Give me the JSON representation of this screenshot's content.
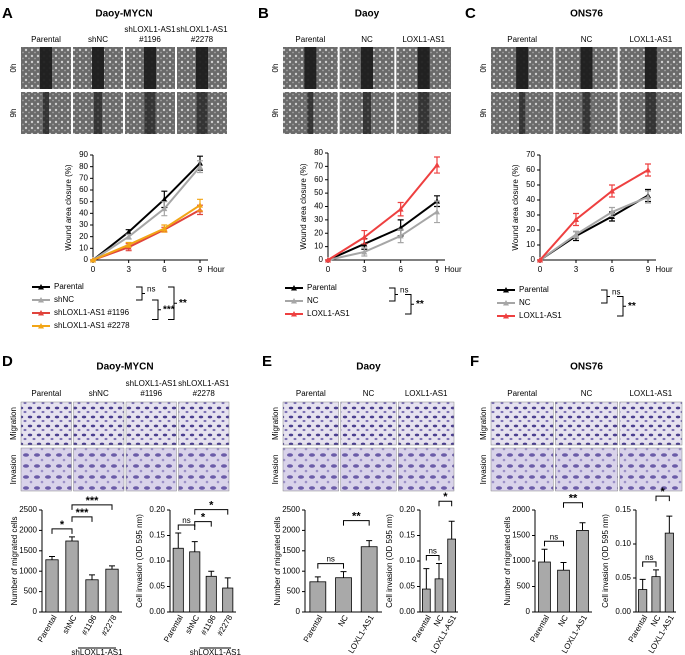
{
  "figure": {
    "panels": [
      {
        "letter": "A",
        "title": "Daoy-MYCN",
        "columns": [
          [
            "Parental"
          ],
          [
            "shNC"
          ],
          [
            "shLOXL1-AS1",
            "#1196"
          ],
          [
            "shLOXL1-AS1",
            "#2278"
          ]
        ],
        "rows": [
          "0h",
          "9h"
        ]
      },
      {
        "letter": "B",
        "title": "Daoy",
        "columns": [
          [
            "Parental"
          ],
          [
            "NC"
          ],
          [
            "LOXL1-AS1"
          ]
        ],
        "rows": [
          "0h",
          "9h"
        ]
      },
      {
        "letter": "C",
        "title": "ONS76",
        "columns": [
          [
            "Parental"
          ],
          [
            "NC"
          ],
          [
            "LOXL1-AS1"
          ]
        ],
        "rows": [
          "0h",
          "9h"
        ]
      },
      {
        "letter": "D",
        "title": "Daoy-MYCN",
        "columns": [
          [
            "Parental"
          ],
          [
            "shNC"
          ],
          [
            "shLOXL1-AS1",
            "#1196"
          ],
          [
            "shLOXL1-AS1",
            "#2278"
          ]
        ],
        "rows": [
          "Migration",
          "Invasion"
        ]
      },
      {
        "letter": "E",
        "title": "Daoy",
        "columns": [
          [
            "Parental"
          ],
          [
            "NC"
          ],
          [
            "LOXL1-AS1"
          ]
        ],
        "rows": [
          "Migration",
          "Invasion"
        ]
      },
      {
        "letter": "F",
        "title": "ONS76",
        "columns": [
          [
            "Parental"
          ],
          [
            "NC"
          ],
          [
            "LOXL1-AS1"
          ]
        ],
        "rows": [
          "Migration",
          "Invasion"
        ]
      }
    ]
  },
  "chart_data": [
    {
      "type": "line",
      "ylabel": "Wound area closure (%)",
      "xlabel": "Hour",
      "x": [
        0,
        3,
        6,
        9
      ],
      "xlim": [
        0,
        9
      ],
      "xticks": [
        0,
        3,
        6,
        9
      ],
      "ylim": [
        0,
        90
      ],
      "yticks": [
        0,
        10,
        20,
        30,
        40,
        50,
        60,
        70,
        80,
        90
      ],
      "series": [
        {
          "name": "Parental",
          "color": "#000000",
          "values": [
            0,
            24,
            52,
            83
          ],
          "errors": [
            0,
            2,
            7,
            6
          ]
        },
        {
          "name": "shNC",
          "color": "#a6a6a6",
          "values": [
            0,
            20,
            44,
            80
          ],
          "errors": [
            0,
            2,
            6,
            5
          ]
        },
        {
          "name": "shLOXL1-AS1 #1196",
          "color": "#e0443c",
          "values": [
            0,
            11,
            26,
            43
          ],
          "errors": [
            0,
            3,
            2,
            4
          ]
        },
        {
          "name": "shLOXL1-AS1 #2278",
          "color": "#f2a516",
          "values": [
            0,
            13,
            27,
            47
          ],
          "errors": [
            0,
            2,
            3,
            5
          ]
        }
      ],
      "annotations": [
        "ns",
        "***",
        "**"
      ]
    },
    {
      "type": "line",
      "ylabel": "Wound area closure (%)",
      "xlabel": "Hour",
      "x": [
        0,
        3,
        6,
        9
      ],
      "xlim": [
        0,
        9
      ],
      "xticks": [
        0,
        3,
        6,
        9
      ],
      "ylim": [
        0,
        80
      ],
      "yticks": [
        0,
        10,
        20,
        30,
        40,
        50,
        60,
        70,
        80
      ],
      "series": [
        {
          "name": "Parental",
          "color": "#000000",
          "values": [
            0,
            12,
            24,
            44
          ],
          "errors": [
            0,
            4,
            6,
            4
          ]
        },
        {
          "name": "NC",
          "color": "#a6a6a6",
          "values": [
            0,
            6,
            18,
            36
          ],
          "errors": [
            0,
            3,
            5,
            8
          ]
        },
        {
          "name": "LOXL1-AS1",
          "color": "#ee4040",
          "values": [
            0,
            17,
            38,
            71
          ],
          "errors": [
            0,
            5,
            5,
            6
          ]
        }
      ],
      "annotations": [
        "ns",
        "**"
      ]
    },
    {
      "type": "line",
      "ylabel": "Wound area closure (%)",
      "xlabel": "Hour",
      "x": [
        0,
        3,
        6,
        9
      ],
      "xlim": [
        0,
        9
      ],
      "xticks": [
        0,
        3,
        6,
        9
      ],
      "ylim": [
        0,
        70
      ],
      "yticks": [
        0,
        10,
        20,
        30,
        40,
        50,
        60,
        70
      ],
      "series": [
        {
          "name": "Parental",
          "color": "#000000",
          "values": [
            0,
            16,
            29,
            43
          ],
          "errors": [
            0,
            3,
            3,
            4
          ]
        },
        {
          "name": "NC",
          "color": "#a6a6a6",
          "values": [
            0,
            17,
            32,
            42
          ],
          "errors": [
            0,
            2,
            3,
            4
          ]
        },
        {
          "name": "LOXL1-AS1",
          "color": "#ee4040",
          "values": [
            0,
            27,
            46,
            60
          ],
          "errors": [
            0,
            4,
            4,
            4
          ]
        }
      ],
      "annotations": [
        "ns",
        "**"
      ]
    },
    {
      "type": "bar",
      "ylabel": "Number of migrated cells",
      "categories": [
        "Parental",
        "shNC",
        "#1196",
        "#2278"
      ],
      "group_label": "shLOXL1-AS1",
      "color": "#a9a9a9",
      "values": [
        1280,
        1740,
        790,
        1050
      ],
      "errors": [
        80,
        100,
        120,
        80
      ],
      "ylim": [
        0,
        2500
      ],
      "yticks": [
        0,
        500,
        1000,
        1500,
        2000,
        2500
      ],
      "annotations": [
        "*",
        "***",
        "***"
      ]
    },
    {
      "type": "bar",
      "ylabel": "Cell invasion (OD 595 nm)",
      "categories": [
        "Parental",
        "shNC",
        "#1196",
        "#2278"
      ],
      "group_label": "shLOXL1-AS1",
      "color": "#a9a9a9",
      "values": [
        0.125,
        0.118,
        0.07,
        0.047
      ],
      "errors": [
        0.03,
        0.02,
        0.01,
        0.02
      ],
      "ylim": [
        0,
        0.2
      ],
      "yticks": [
        {
          "value": 0,
          "label": "0.00"
        },
        {
          "value": 0.05,
          "label": "0.05"
        },
        {
          "value": 0.1,
          "label": "0.10"
        },
        {
          "value": 0.15,
          "label": "0.15"
        },
        {
          "value": 0.2,
          "label": "0.20"
        }
      ],
      "annotations": [
        "ns",
        "*",
        "*"
      ]
    },
    {
      "type": "bar",
      "ylabel": "Number of migrated cells",
      "categories": [
        "Parental",
        "NC",
        "LOXL1-AS1"
      ],
      "color": "#a9a9a9",
      "values": [
        740,
        840,
        1600
      ],
      "errors": [
        120,
        150,
        150
      ],
      "ylim": [
        0,
        2500
      ],
      "yticks": [
        0,
        500,
        1000,
        1500,
        2000,
        2500
      ],
      "annotations": [
        "ns",
        "**"
      ]
    },
    {
      "type": "bar",
      "ylabel": "Cell invasion (OD 595 nm)",
      "categories": [
        "Parental",
        "NC",
        "LOXL1-AS1"
      ],
      "color": "#a9a9a9",
      "values": [
        0.045,
        0.065,
        0.143
      ],
      "errors": [
        0.04,
        0.03,
        0.035
      ],
      "ylim": [
        0,
        0.2
      ],
      "yticks": [
        {
          "value": 0,
          "label": "0.00"
        },
        {
          "value": 0.05,
          "label": "0.05"
        },
        {
          "value": 0.1,
          "label": "0.10"
        },
        {
          "value": 0.15,
          "label": "0.15"
        },
        {
          "value": 0.2,
          "label": "0.20"
        }
      ],
      "annotations": [
        "ns",
        "*"
      ]
    },
    {
      "type": "bar",
      "ylabel": "Number of migrated cells",
      "categories": [
        "Parental",
        "NC",
        "LOXL1-AS1"
      ],
      "color": "#a9a9a9",
      "values": [
        980,
        820,
        1600
      ],
      "errors": [
        250,
        150,
        150
      ],
      "ylim": [
        0,
        2000
      ],
      "yticks": [
        0,
        500,
        1000,
        1500,
        2000
      ],
      "annotations": [
        "ns",
        "**"
      ]
    },
    {
      "type": "bar",
      "ylabel": "Cell invasion (OD 595 nm)",
      "categories": [
        "Parental",
        "NC",
        "LOXL1-AS1"
      ],
      "color": "#a9a9a9",
      "values": [
        0.033,
        0.052,
        0.116
      ],
      "errors": [
        0.015,
        0.01,
        0.025
      ],
      "ylim": [
        0,
        0.15
      ],
      "yticks": [
        {
          "value": 0,
          "label": "0.00"
        },
        {
          "value": 0.05,
          "label": "0.05"
        },
        {
          "value": 0.1,
          "label": "0.10"
        },
        {
          "value": 0.15,
          "label": "0.15"
        }
      ],
      "annotations": [
        "ns",
        "*"
      ]
    }
  ]
}
